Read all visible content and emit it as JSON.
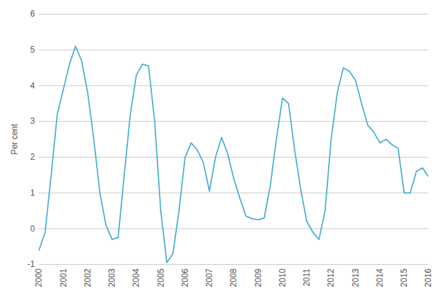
{
  "chart_data": {
    "type": "line",
    "x": [
      2000.0,
      2000.25,
      2000.5,
      2000.75,
      2001.0,
      2001.25,
      2001.5,
      2001.75,
      2002.0,
      2002.25,
      2002.5,
      2002.75,
      2003.0,
      2003.25,
      2003.5,
      2003.75,
      2004.0,
      2004.25,
      2004.5,
      2004.75,
      2005.0,
      2005.25,
      2005.5,
      2005.75,
      2006.0,
      2006.25,
      2006.5,
      2006.75,
      2007.0,
      2007.25,
      2007.5,
      2007.75,
      2008.0,
      2008.25,
      2008.5,
      2008.75,
      2009.0,
      2009.25,
      2009.5,
      2009.75,
      2010.0,
      2010.25,
      2010.5,
      2010.75,
      2011.0,
      2011.25,
      2011.5,
      2011.75,
      2012.0,
      2012.25,
      2012.5,
      2012.75,
      2013.0,
      2013.25,
      2013.5,
      2013.75,
      2014.0,
      2014.25,
      2014.5,
      2014.75,
      2015.0,
      2015.25,
      2015.5,
      2015.75,
      2016.0
    ],
    "values": [
      -0.6,
      -0.1,
      1.5,
      3.2,
      3.9,
      4.6,
      5.1,
      4.7,
      3.8,
      2.5,
      1.0,
      0.1,
      -0.3,
      -0.25,
      1.5,
      3.2,
      4.3,
      4.6,
      4.55,
      3.0,
      0.5,
      -0.95,
      -0.7,
      0.5,
      2.0,
      2.4,
      2.2,
      1.85,
      1.05,
      2.0,
      2.55,
      2.1,
      1.4,
      0.85,
      0.35,
      0.28,
      0.25,
      0.3,
      1.2,
      2.5,
      3.65,
      3.5,
      2.2,
      1.1,
      0.2,
      -0.1,
      -0.3,
      0.5,
      2.5,
      3.8,
      4.5,
      4.4,
      4.15,
      3.5,
      2.9,
      2.7,
      2.4,
      2.5,
      2.35,
      2.25,
      1.0,
      1.0,
      1.6,
      1.7,
      1.45
    ],
    "color": "#4aafd4",
    "ylabel": "Per cent",
    "xlim": [
      2000,
      2016
    ],
    "ylim": [
      -1,
      6
    ],
    "xticks": [
      2000,
      2001,
      2002,
      2003,
      2004,
      2005,
      2006,
      2007,
      2008,
      2009,
      2010,
      2011,
      2012,
      2013,
      2014,
      2015,
      2016
    ],
    "yticks": [
      -1,
      0,
      1,
      2,
      3,
      4,
      5,
      6
    ],
    "grid": "y"
  }
}
